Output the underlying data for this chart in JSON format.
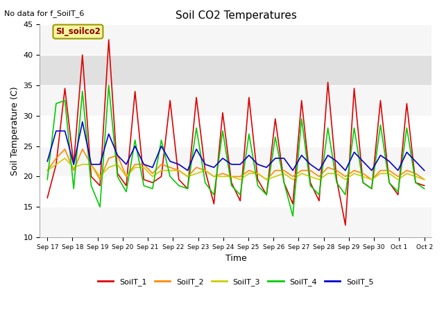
{
  "title": "Soil CO2 Temperatures",
  "subtitle": "No data for f_SoilT_6",
  "xlabel": "Time",
  "ylabel": "Soil Temperature (C)",
  "ylim": [
    10,
    45
  ],
  "yticks": [
    10,
    15,
    20,
    25,
    30,
    35,
    40,
    45
  ],
  "bg_color": "#ffffff",
  "plot_bg_color": "#ffffff",
  "legend_label": "SI_soilco2",
  "series_colors": {
    "SoilT_1": "#dd0000",
    "SoilT_2": "#ff8800",
    "SoilT_3": "#cccc00",
    "SoilT_4": "#00cc00",
    "SoilT_5": "#0000cc"
  },
  "x_tick_labels": [
    "Sep 17",
    "Sep 18",
    "Sep 19",
    "Sep 20",
    "Sep 21",
    "Sep 22",
    "Sep 23",
    "Sep 24",
    "Sep 25",
    "Sep 26",
    "Sep 27",
    "Sep 28",
    "Sep 29",
    "Sep 30",
    "Oct 1",
    "Oct 2"
  ],
  "gray_band": [
    35,
    40
  ],
  "soilT1": [
    16.5,
    22,
    34.5,
    22,
    40,
    20,
    18.5,
    42.5,
    20.5,
    18.5,
    34,
    19.5,
    19,
    20,
    32.5,
    19.5,
    18,
    33,
    21,
    15.5,
    30.5,
    19,
    16,
    33,
    19.5,
    17,
    29.5,
    19,
    15.5,
    32.5,
    19,
    16,
    35.5,
    19.5,
    12,
    34.5,
    19,
    18,
    32.5,
    19,
    17,
    32,
    19,
    18.5
  ],
  "soilT2": [
    21,
    23,
    24.5,
    21,
    24.5,
    22,
    19.5,
    23,
    23.5,
    20,
    22,
    22,
    20.5,
    22,
    21.5,
    21,
    20,
    21.5,
    21,
    20,
    20.5,
    20,
    20,
    21,
    20.5,
    19.5,
    21,
    21,
    20,
    21,
    21,
    20,
    21.5,
    21,
    20,
    21,
    20.5,
    19.5,
    21,
    21,
    20,
    21,
    20.5,
    19.5
  ],
  "soilT3": [
    21,
    22,
    23,
    21.5,
    22,
    22,
    20,
    21.5,
    22,
    20,
    21.5,
    21.5,
    20,
    21,
    21,
    21,
    20,
    20.5,
    21,
    20,
    20,
    20,
    19.5,
    20.5,
    20.5,
    19.5,
    20,
    20.5,
    19.5,
    20.5,
    20,
    19.5,
    20.5,
    20.5,
    19.5,
    20.5,
    20,
    19.5,
    20.5,
    20.5,
    19.5,
    20.5,
    20,
    19.5
  ],
  "soilT4": [
    19.5,
    32,
    32.5,
    18,
    34,
    18.5,
    15,
    35,
    20,
    17.5,
    26,
    18.5,
    18,
    26,
    20,
    18.5,
    18,
    28,
    19,
    17,
    27.5,
    18.5,
    17,
    27,
    18.5,
    17,
    26.5,
    19,
    13.5,
    29.5,
    18.5,
    17,
    28,
    19,
    17,
    28,
    19,
    18,
    28.5,
    19,
    17.5,
    28,
    19,
    18
  ],
  "soilT5": [
    22.5,
    27.5,
    27.5,
    22,
    29,
    22,
    22,
    27,
    23.5,
    22,
    25,
    22,
    21.5,
    25,
    22.5,
    22,
    21,
    24.5,
    22,
    21.5,
    23,
    22,
    22,
    23.5,
    22,
    21.5,
    23,
    23,
    21,
    23.5,
    22,
    21,
    23.5,
    22.5,
    21,
    24,
    22.5,
    21,
    23.5,
    22.5,
    21,
    24,
    22.5,
    21
  ]
}
